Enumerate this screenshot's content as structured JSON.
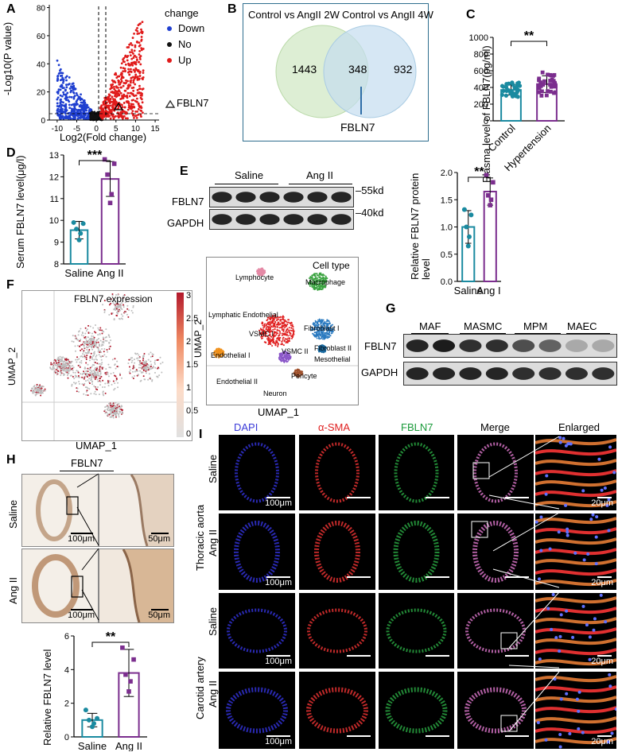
{
  "panels": {
    "A": {
      "label": "A",
      "ylabel": "-Log10(P value)",
      "xlabel": "Log2(Fold change)",
      "yticks": [
        "0",
        "20",
        "40",
        "60",
        "80"
      ],
      "xticks": [
        "-10",
        "-5",
        "0",
        "5",
        "10",
        "15"
      ],
      "legend_title": "change",
      "legend": [
        {
          "name": "Down",
          "color": "#1f3fd0"
        },
        {
          "name": "No",
          "color": "#111111"
        },
        {
          "name": "Up",
          "color": "#e01a1a"
        }
      ],
      "marker_label": "FBLN7"
    },
    "B": {
      "label": "B",
      "left_title": "Control vs AngII 2W",
      "right_title": "Control vs AngII 4W",
      "left_only": "1443",
      "overlap": "348",
      "right_only": "932",
      "callout": "FBLN7"
    },
    "C": {
      "label": "C",
      "ylabel": "Plasma level of FBLN7(pg/ml)",
      "yticks": [
        "0",
        "200",
        "400",
        "600",
        "800",
        "1000"
      ],
      "groups": [
        "Control",
        "Hypertension"
      ],
      "sig": "**"
    },
    "D": {
      "label": "D",
      "ylabel": "Serum FBLN7 level(μg/l)",
      "yticks": [
        "8",
        "9",
        "10",
        "11",
        "12",
        "13"
      ],
      "groups": [
        "Saline",
        "Ang II"
      ],
      "sig": "***"
    },
    "E": {
      "label": "E",
      "group_left": "Saline",
      "group_right": "Ang II",
      "row1": "FBLN7",
      "row2": "GAPDH",
      "mw1": "55kd",
      "mw2": "40kd",
      "bar_ylabel": "Relative FBLN7 protein level",
      "bar_yticks": [
        "0.0",
        "0.5",
        "1.0",
        "1.5",
        "2.0"
      ],
      "groups": [
        "Saline",
        "Ang II"
      ],
      "sig": "**"
    },
    "F": {
      "label": "F",
      "title": "FBLN7 expression",
      "ylabel": "UMAP_2",
      "xlabel": "UMAP_1",
      "scale_ticks": [
        "3",
        "2.5",
        "2",
        "1.5",
        "1",
        "0.5",
        "0"
      ]
    },
    "F2": {
      "legend_title": "Cell type",
      "ylabel": "UMAP_2",
      "xlabel": "UMAP_1",
      "clusters": [
        "Lymphocyte",
        "Macrophage",
        "Lymphatic Endothelial",
        "VSMC I",
        "Fibroblast I",
        "Fibroblast II",
        "VSMC II",
        "Mesothelial",
        "Endothelial I",
        "Pericyte",
        "Endothelial II",
        "Neuron"
      ]
    },
    "G": {
      "label": "G",
      "lanes": [
        "MAF",
        "MASMC",
        "MPM",
        "MAEC"
      ],
      "row1": "FBLN7",
      "row2": "GAPDH"
    },
    "H": {
      "label": "H",
      "title": "FBLN7",
      "rows": [
        "Saline",
        "Ang II"
      ],
      "scale_low": "100μm",
      "scale_high": "50μm",
      "bar_ylabel": "Relative FBLN7 level",
      "bar_yticks": [
        "0",
        "2",
        "4",
        "6"
      ],
      "groups": [
        "Saline",
        "Ang II"
      ],
      "sig": "**"
    },
    "I": {
      "label": "I",
      "columns": [
        "DAPI",
        "α-SMA",
        "FBLN7",
        "Merge",
        "Enlarged"
      ],
      "column_colors": [
        "#3a3ad8",
        "#e02020",
        "#1a9a3a",
        "#000000",
        "#000000"
      ],
      "tissue1": "Thoracic aorta",
      "tissue2": "Carotid artery",
      "row_labels": [
        "Saline",
        "Ang II",
        "Saline",
        "Ang II"
      ],
      "scale_main": "100μm",
      "scale_zoom": "20μm"
    }
  },
  "chart_data": [
    {
      "type": "scatter",
      "panel": "A",
      "xlabel": "Log2(Fold change)",
      "ylabel": "-Log10(P value)",
      "xlim": [
        -12,
        16
      ],
      "ylim": [
        0,
        82
      ],
      "series": [
        {
          "name": "Down"
        },
        {
          "name": "No"
        },
        {
          "name": "Up"
        }
      ]
    },
    {
      "type": "bar",
      "panel": "C",
      "categories": [
        "Control",
        "Hypertension"
      ],
      "values": [
        370,
        440
      ],
      "errors": [
        60,
        100
      ],
      "ylim": [
        0,
        1000
      ]
    },
    {
      "type": "bar",
      "panel": "D",
      "categories": [
        "Saline",
        "Ang II"
      ],
      "values": [
        9.55,
        11.9
      ],
      "errors": [
        0.4,
        0.8
      ],
      "points": [
        [
          9.1,
          9.4,
          9.6,
          9.85,
          9.9
        ],
        [
          10.8,
          11.2,
          12.1,
          12.6,
          12.8
        ]
      ],
      "ylim": [
        8,
        13
      ]
    },
    {
      "type": "bar",
      "panel": "E",
      "categories": [
        "Saline",
        "Ang II"
      ],
      "values": [
        1.0,
        1.65
      ],
      "errors": [
        0.3,
        0.25
      ],
      "points": [
        [
          0.65,
          0.82,
          1.0,
          1.22,
          1.32
        ],
        [
          1.4,
          1.5,
          1.58,
          1.82,
          1.95
        ]
      ],
      "ylim": [
        0,
        2
      ]
    },
    {
      "type": "bar",
      "panel": "H",
      "categories": [
        "Saline",
        "Ang II"
      ],
      "values": [
        1.0,
        3.8
      ],
      "errors": [
        0.4,
        1.4
      ],
      "points": [
        [
          0.6,
          0.8,
          1.0,
          1.1,
          1.6
        ],
        [
          2.7,
          3.3,
          3.7,
          4.6,
          5.3
        ]
      ],
      "ylim": [
        0,
        6
      ]
    }
  ]
}
